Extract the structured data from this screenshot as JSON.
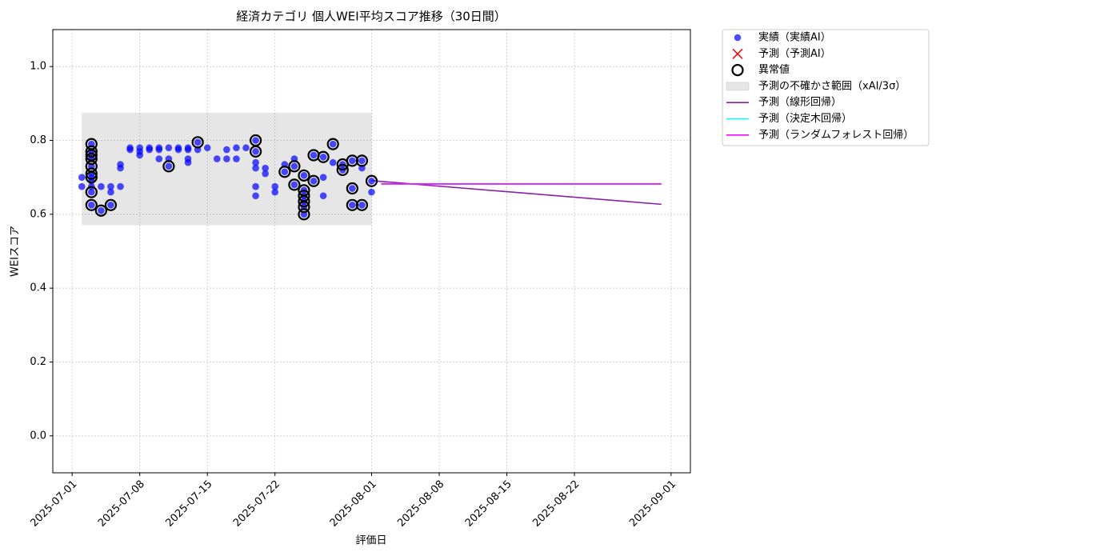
{
  "chart_data": {
    "type": "scatter",
    "title": "経済カテゴリ 個人WEI平均スコア推移（30日間）",
    "x_label": "評価日",
    "y_label": "WEIスコア",
    "xlim": [
      "2025-06-29",
      "2025-09-03"
    ],
    "xticks": [
      "2025-07-01",
      "2025-07-08",
      "2025-07-15",
      "2025-07-22",
      "2025-08-01",
      "2025-08-08",
      "2025-08-15",
      "2025-08-22",
      "2025-09-01"
    ],
    "ylim": [
      -0.1,
      1.1
    ],
    "yticks": [
      {
        "value": 0,
        "label": "0.0"
      },
      0.2,
      0.4,
      0.6,
      0.8,
      {
        "value": 1,
        "label": "1.0"
      }
    ],
    "grid": true,
    "legend": "outside right",
    "series": [
      {
        "name": "実績（実績AI）",
        "type": "scatter",
        "marker": "circle",
        "color": "#0000ff",
        "x": [
          "2025-07-02",
          "2025-07-02",
          "2025-07-03",
          "2025-07-03",
          "2025-07-03",
          "2025-07-03",
          "2025-07-03",
          "2025-07-03",
          "2025-07-03",
          "2025-07-03",
          "2025-07-03",
          "2025-07-03",
          "2025-07-03",
          "2025-07-04",
          "2025-07-04",
          "2025-07-05",
          "2025-07-05",
          "2025-07-05",
          "2025-07-06",
          "2025-07-06",
          "2025-07-06",
          "2025-07-07",
          "2025-07-07",
          "2025-07-08",
          "2025-07-08",
          "2025-07-08",
          "2025-07-09",
          "2025-07-09",
          "2025-07-10",
          "2025-07-10",
          "2025-07-10",
          "2025-07-11",
          "2025-07-11",
          "2025-07-11",
          "2025-07-12",
          "2025-07-12",
          "2025-07-13",
          "2025-07-13",
          "2025-07-13",
          "2025-07-13",
          "2025-07-14",
          "2025-07-14",
          "2025-07-15",
          "2025-07-16",
          "2025-07-17",
          "2025-07-17",
          "2025-07-18",
          "2025-07-18",
          "2025-07-19",
          "2025-07-20",
          "2025-07-20",
          "2025-07-20",
          "2025-07-20",
          "2025-07-20",
          "2025-07-20",
          "2025-07-21",
          "2025-07-21",
          "2025-07-22",
          "2025-07-22",
          "2025-07-23",
          "2025-07-23",
          "2025-07-24",
          "2025-07-24",
          "2025-07-24",
          "2025-07-25",
          "2025-07-25",
          "2025-07-25",
          "2025-07-25",
          "2025-07-25",
          "2025-07-25",
          "2025-07-26",
          "2025-07-26",
          "2025-07-27",
          "2025-07-27",
          "2025-07-27",
          "2025-07-28",
          "2025-07-28",
          "2025-07-29",
          "2025-07-29",
          "2025-07-30",
          "2025-07-30",
          "2025-07-30",
          "2025-07-31",
          "2025-07-31",
          "2025-07-31",
          "2025-08-01",
          "2025-08-01"
        ],
        "values": [
          0.7,
          0.675,
          0.675,
          0.625,
          0.79,
          0.77,
          0.76,
          0.75,
          0.73,
          0.71,
          0.7,
          0.69,
          0.66,
          0.61,
          0.675,
          0.625,
          0.66,
          0.675,
          0.675,
          0.725,
          0.735,
          0.78,
          0.775,
          0.78,
          0.76,
          0.77,
          0.78,
          0.775,
          0.78,
          0.75,
          0.775,
          0.78,
          0.75,
          0.73,
          0.775,
          0.78,
          0.78,
          0.775,
          0.74,
          0.75,
          0.795,
          0.775,
          0.78,
          0.75,
          0.775,
          0.75,
          0.78,
          0.75,
          0.78,
          0.8,
          0.77,
          0.74,
          0.725,
          0.65,
          0.675,
          0.71,
          0.725,
          0.66,
          0.675,
          0.735,
          0.715,
          0.73,
          0.75,
          0.68,
          0.665,
          0.65,
          0.635,
          0.62,
          0.6,
          0.705,
          0.69,
          0.76,
          0.755,
          0.65,
          0.7,
          0.79,
          0.74,
          0.72,
          0.735,
          0.745,
          0.67,
          0.625,
          0.745,
          0.625,
          0.725,
          0.69,
          0.66
        ]
      },
      {
        "name": "予測（予測AI）",
        "type": "scatter",
        "marker": "cross",
        "color": "#ff0000",
        "x": [],
        "values": []
      },
      {
        "name": "異常値",
        "type": "scatter",
        "marker": "ring",
        "color": "#000000",
        "x": [
          "2025-07-03",
          "2025-07-03",
          "2025-07-03",
          "2025-07-03",
          "2025-07-03",
          "2025-07-03",
          "2025-07-03",
          "2025-07-03",
          "2025-07-03",
          "2025-07-04",
          "2025-07-05",
          "2025-07-11",
          "2025-07-14",
          "2025-07-20",
          "2025-07-20",
          "2025-07-23",
          "2025-07-24",
          "2025-07-24",
          "2025-07-25",
          "2025-07-25",
          "2025-07-25",
          "2025-07-25",
          "2025-07-25",
          "2025-07-25",
          "2025-07-26",
          "2025-07-26",
          "2025-07-27",
          "2025-07-28",
          "2025-07-29",
          "2025-07-29",
          "2025-07-30",
          "2025-07-30",
          "2025-07-30",
          "2025-07-31",
          "2025-07-31",
          "2025-08-01"
        ],
        "values": [
          0.79,
          0.77,
          0.76,
          0.75,
          0.73,
          0.71,
          0.7,
          0.66,
          0.625,
          0.61,
          0.625,
          0.73,
          0.795,
          0.8,
          0.77,
          0.715,
          0.73,
          0.68,
          0.665,
          0.65,
          0.635,
          0.62,
          0.6,
          0.705,
          0.69,
          0.76,
          0.755,
          0.79,
          0.72,
          0.735,
          0.745,
          0.67,
          0.625,
          0.745,
          0.625,
          0.69
        ]
      },
      {
        "name": "予測の不確かさ範囲（xAI/3σ）",
        "type": "band",
        "color": "#808080",
        "x": [
          "2025-07-02",
          "2025-08-01"
        ],
        "upper": [
          0.875,
          0.875
        ],
        "lower": [
          0.57,
          0.57
        ]
      },
      {
        "name": "予測（線形回帰）",
        "type": "line",
        "color": "#8b1fa9",
        "x": [
          "2025-08-01",
          "2025-08-31"
        ],
        "values": [
          0.691,
          0.627
        ]
      },
      {
        "name": "予測（決定木回帰）",
        "type": "line",
        "color": "#00ffff",
        "x": [
          "2025-08-02",
          "2025-08-31"
        ],
        "values": [
          0.682,
          0.682
        ]
      },
      {
        "name": "予測（ランダムフォレスト回帰）",
        "type": "line",
        "color": "#ff00ff",
        "x": [
          "2025-08-02",
          "2025-08-31"
        ],
        "values": [
          0.682,
          0.682
        ]
      }
    ]
  }
}
